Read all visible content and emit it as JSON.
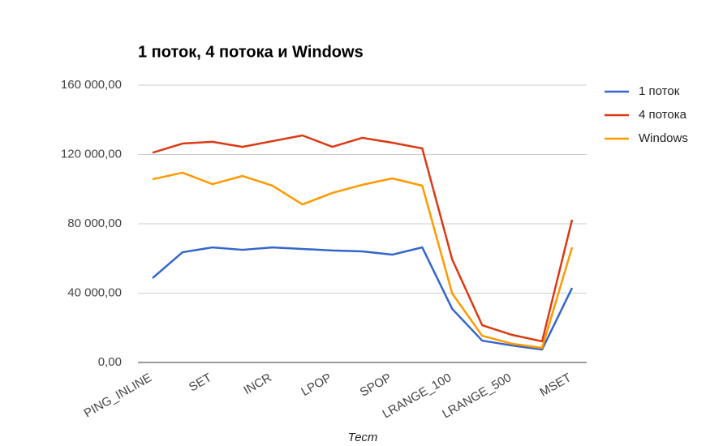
{
  "chart_data": {
    "type": "line",
    "title": "1 поток, 4 потока и Windows",
    "x_label": "Тест",
    "categories": [
      "PING_INLINE",
      null,
      "SET",
      null,
      "INCR",
      null,
      "LPOP",
      null,
      "SPOP",
      null,
      "LRANGE_100",
      null,
      "LRANGE_500",
      null,
      "MSET"
    ],
    "series": [
      {
        "name": "1 поток",
        "color": "#3366cc",
        "values": [
          48700,
          63600,
          66400,
          65000,
          66400,
          65500,
          64600,
          64100,
          62200,
          66400,
          30900,
          12600,
          9800,
          7500,
          43000
        ]
      },
      {
        "name": "4 потока",
        "color": "#dc3912",
        "values": [
          121000,
          126300,
          127300,
          124400,
          127700,
          131000,
          124400,
          129600,
          126800,
          123500,
          59400,
          21500,
          15900,
          12200,
          82300
        ]
      },
      {
        "name": "Windows",
        "color": "#ff9900",
        "values": [
          105700,
          109500,
          102900,
          107600,
          102000,
          91200,
          97800,
          102500,
          106200,
          102000,
          39800,
          15400,
          10800,
          8400,
          66400
        ]
      }
    ],
    "ylim": [
      0,
      160000
    ],
    "yticks": [
      {
        "value": 0,
        "label": "0,00"
      },
      {
        "value": 40000,
        "label": "40 000,00"
      },
      {
        "value": 80000,
        "label": "80 000,00"
      },
      {
        "value": 120000,
        "label": "120 000,00"
      },
      {
        "value": 160000,
        "label": "160 000,00"
      }
    ],
    "grid": true,
    "legend": "right"
  }
}
